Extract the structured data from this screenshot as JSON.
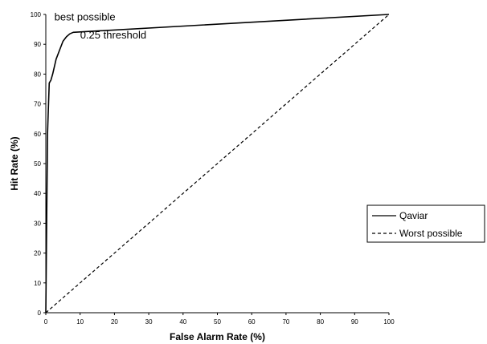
{
  "chart_data": {
    "type": "line",
    "title": "",
    "xlabel": "False Alarm Rate (%)",
    "ylabel": "Hit Rate (%)",
    "xlim": [
      0,
      100
    ],
    "ylim": [
      0,
      100
    ],
    "xticks": [
      0,
      10,
      20,
      30,
      40,
      50,
      60,
      70,
      80,
      90,
      100
    ],
    "yticks": [
      0,
      10,
      20,
      30,
      40,
      50,
      60,
      70,
      80,
      90,
      100
    ],
    "grid": false,
    "legend_position": "right",
    "series": [
      {
        "name": "Qaviar",
        "style": "solid",
        "color": "#000000",
        "x": [
          0,
          0.5,
          1,
          1.5,
          2,
          3,
          4,
          5,
          6,
          7,
          8,
          100
        ],
        "y": [
          0,
          60,
          77,
          78,
          80,
          85,
          88,
          91,
          92.5,
          93.5,
          94,
          100
        ]
      },
      {
        "name": "Worst possible",
        "style": "dashed",
        "color": "#000000",
        "x": [
          0,
          100
        ],
        "y": [
          0,
          100
        ]
      }
    ],
    "annotations": [
      {
        "text": "best possible",
        "x": 2.5,
        "y": 98
      },
      {
        "text": "0.25 threshold",
        "x": 10,
        "y": 92
      }
    ]
  }
}
